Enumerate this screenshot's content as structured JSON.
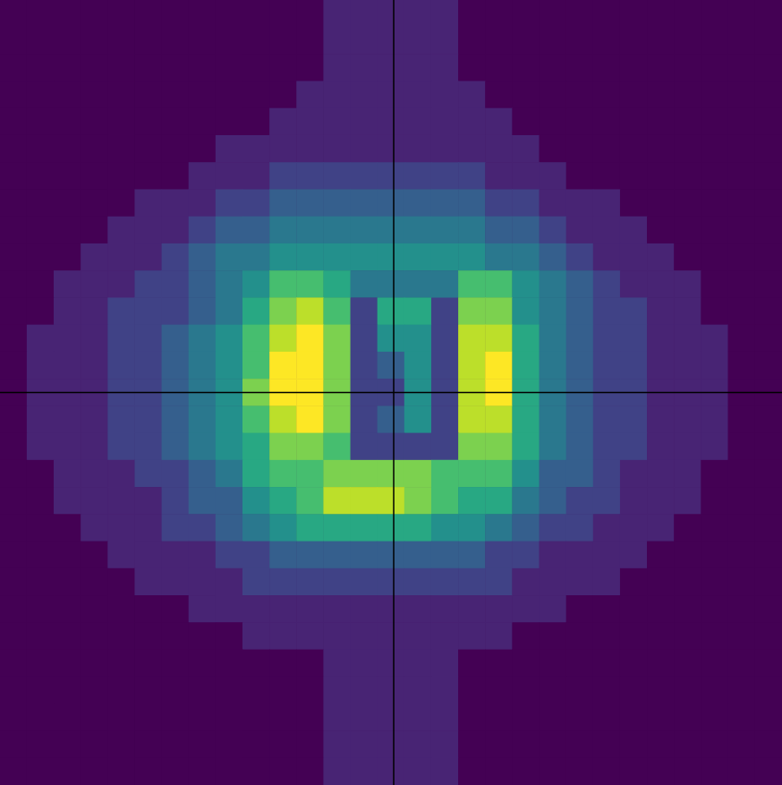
{
  "chart_data": {
    "type": "heatmap",
    "tick_labels": false,
    "grid": false,
    "xlim": [
      0,
      29
    ],
    "ylim": [
      0,
      29
    ],
    "color_range": [
      0,
      10
    ],
    "crosshair": {
      "x": 14.6,
      "y": 14.5
    },
    "cells": [
      [
        0,
        0,
        0,
        0,
        0,
        0,
        0,
        0,
        0,
        0,
        0,
        0,
        1,
        1,
        1,
        1,
        1,
        0,
        0,
        0,
        0,
        0,
        0,
        0,
        0,
        0,
        0,
        0,
        0
      ],
      [
        0,
        0,
        0,
        0,
        0,
        0,
        0,
        0,
        0,
        0,
        0,
        0,
        1,
        1,
        1,
        1,
        1,
        0,
        0,
        0,
        0,
        0,
        0,
        0,
        0,
        0,
        0,
        0,
        0
      ],
      [
        0,
        0,
        0,
        0,
        0,
        0,
        0,
        0,
        0,
        0,
        0,
        0,
        1,
        1,
        1,
        1,
        1,
        0,
        0,
        0,
        0,
        0,
        0,
        0,
        0,
        0,
        0,
        0,
        0
      ],
      [
        0,
        0,
        0,
        0,
        0,
        0,
        0,
        0,
        0,
        0,
        0,
        1,
        1,
        1,
        1,
        1,
        1,
        1,
        0,
        0,
        0,
        0,
        0,
        0,
        0,
        0,
        0,
        0,
        0
      ],
      [
        0,
        0,
        0,
        0,
        0,
        0,
        0,
        0,
        0,
        0,
        1,
        1,
        1,
        1,
        1,
        1,
        1,
        1,
        1,
        0,
        0,
        0,
        0,
        0,
        0,
        0,
        0,
        0,
        0
      ],
      [
        0,
        0,
        0,
        0,
        0,
        0,
        0,
        0,
        1,
        1,
        1,
        1,
        1,
        1,
        1,
        1,
        1,
        1,
        1,
        1,
        0,
        0,
        0,
        0,
        0,
        0,
        0,
        0,
        0
      ],
      [
        0,
        0,
        0,
        0,
        0,
        0,
        0,
        1,
        1,
        1,
        2,
        2,
        2,
        2,
        2,
        2,
        2,
        2,
        1,
        1,
        1,
        0,
        0,
        0,
        0,
        0,
        0,
        0,
        0
      ],
      [
        0,
        0,
        0,
        0,
        0,
        1,
        1,
        1,
        2,
        2,
        3,
        3,
        3,
        3,
        3,
        3,
        3,
        3,
        2,
        2,
        1,
        1,
        1,
        0,
        0,
        0,
        0,
        0,
        0
      ],
      [
        0,
        0,
        0,
        0,
        1,
        1,
        1,
        2,
        3,
        3,
        4,
        4,
        4,
        4,
        4,
        4,
        4,
        4,
        3,
        3,
        2,
        1,
        1,
        1,
        0,
        0,
        0,
        0,
        0
      ],
      [
        0,
        0,
        0,
        1,
        1,
        1,
        2,
        3,
        4,
        4,
        5,
        5,
        5,
        5,
        5,
        5,
        5,
        5,
        4,
        4,
        3,
        2,
        1,
        1,
        1,
        0,
        0,
        0,
        0
      ],
      [
        0,
        0,
        1,
        1,
        1,
        2,
        2,
        3,
        4,
        5,
        7,
        7,
        6,
        4,
        4,
        4,
        4,
        7,
        7,
        5,
        4,
        3,
        2,
        1,
        1,
        1,
        0,
        0,
        0
      ],
      [
        0,
        0,
        1,
        1,
        2,
        2,
        2,
        3,
        4,
        6,
        8,
        9,
        7,
        2,
        6,
        6,
        2,
        8,
        8,
        5,
        4,
        3,
        2,
        2,
        1,
        1,
        0,
        0,
        0
      ],
      [
        0,
        1,
        1,
        1,
        2,
        2,
        3,
        4,
        5,
        7,
        9,
        10,
        8,
        2,
        5,
        5,
        2,
        9,
        9,
        6,
        4,
        3,
        2,
        2,
        1,
        1,
        1,
        0,
        0
      ],
      [
        0,
        1,
        1,
        1,
        2,
        2,
        3,
        4,
        5,
        7,
        10,
        10,
        8,
        2,
        3,
        5,
        2,
        9,
        10,
        6,
        4,
        3,
        2,
        2,
        1,
        1,
        1,
        0,
        0
      ],
      [
        0,
        1,
        1,
        1,
        2,
        2,
        3,
        4,
        5,
        8,
        10,
        10,
        8,
        2,
        2,
        5,
        2,
        9,
        10,
        6,
        4,
        3,
        2,
        2,
        1,
        1,
        1,
        0,
        0
      ],
      [
        0,
        1,
        1,
        1,
        2,
        2,
        3,
        4,
        5,
        7,
        9,
        10,
        8,
        2,
        3,
        5,
        2,
        9,
        9,
        6,
        4,
        3,
        2,
        2,
        1,
        1,
        1,
        0,
        0
      ],
      [
        0,
        1,
        1,
        1,
        2,
        2,
        3,
        4,
        5,
        6,
        8,
        8,
        7,
        2,
        2,
        2,
        2,
        8,
        8,
        6,
        4,
        3,
        2,
        2,
        1,
        1,
        1,
        0,
        0
      ],
      [
        0,
        0,
        1,
        1,
        1,
        2,
        2,
        3,
        4,
        6,
        7,
        7,
        8,
        8,
        8,
        8,
        7,
        7,
        7,
        5,
        3,
        3,
        2,
        1,
        1,
        1,
        0,
        0,
        0
      ],
      [
        0,
        0,
        1,
        1,
        1,
        1,
        2,
        3,
        3,
        5,
        6,
        7,
        9,
        9,
        9,
        8,
        7,
        6,
        6,
        4,
        3,
        2,
        2,
        1,
        1,
        1,
        0,
        0,
        0
      ],
      [
        0,
        0,
        0,
        1,
        1,
        1,
        2,
        2,
        3,
        4,
        5,
        6,
        6,
        6,
        6,
        6,
        5,
        5,
        4,
        3,
        2,
        2,
        1,
        1,
        1,
        0,
        0,
        0,
        0
      ],
      [
        0,
        0,
        0,
        0,
        1,
        1,
        1,
        1,
        2,
        2,
        3,
        3,
        3,
        3,
        3,
        3,
        3,
        3,
        2,
        2,
        1,
        1,
        1,
        1,
        0,
        0,
        0,
        0,
        0
      ],
      [
        0,
        0,
        0,
        0,
        0,
        1,
        1,
        1,
        1,
        2,
        2,
        2,
        2,
        2,
        2,
        2,
        2,
        2,
        2,
        1,
        1,
        1,
        1,
        0,
        0,
        0,
        0,
        0,
        0
      ],
      [
        0,
        0,
        0,
        0,
        0,
        0,
        0,
        1,
        1,
        1,
        1,
        1,
        1,
        1,
        1,
        1,
        1,
        1,
        1,
        1,
        1,
        0,
        0,
        0,
        0,
        0,
        0,
        0,
        0
      ],
      [
        0,
        0,
        0,
        0,
        0,
        0,
        0,
        0,
        0,
        1,
        1,
        1,
        1,
        1,
        1,
        1,
        1,
        1,
        1,
        0,
        0,
        0,
        0,
        0,
        0,
        0,
        0,
        0,
        0
      ],
      [
        0,
        0,
        0,
        0,
        0,
        0,
        0,
        0,
        0,
        0,
        0,
        0,
        1,
        1,
        1,
        1,
        1,
        0,
        0,
        0,
        0,
        0,
        0,
        0,
        0,
        0,
        0,
        0,
        0
      ],
      [
        0,
        0,
        0,
        0,
        0,
        0,
        0,
        0,
        0,
        0,
        0,
        0,
        1,
        1,
        1,
        1,
        1,
        0,
        0,
        0,
        0,
        0,
        0,
        0,
        0,
        0,
        0,
        0,
        0
      ],
      [
        0,
        0,
        0,
        0,
        0,
        0,
        0,
        0,
        0,
        0,
        0,
        0,
        1,
        1,
        1,
        1,
        1,
        0,
        0,
        0,
        0,
        0,
        0,
        0,
        0,
        0,
        0,
        0,
        0
      ],
      [
        0,
        0,
        0,
        0,
        0,
        0,
        0,
        0,
        0,
        0,
        0,
        0,
        1,
        1,
        1,
        1,
        1,
        0,
        0,
        0,
        0,
        0,
        0,
        0,
        0,
        0,
        0,
        0,
        0
      ],
      [
        0,
        0,
        0,
        0,
        0,
        0,
        0,
        0,
        0,
        0,
        0,
        0,
        1,
        1,
        1,
        1,
        1,
        0,
        0,
        0,
        0,
        0,
        0,
        0,
        0,
        0,
        0,
        0,
        0
      ]
    ]
  }
}
